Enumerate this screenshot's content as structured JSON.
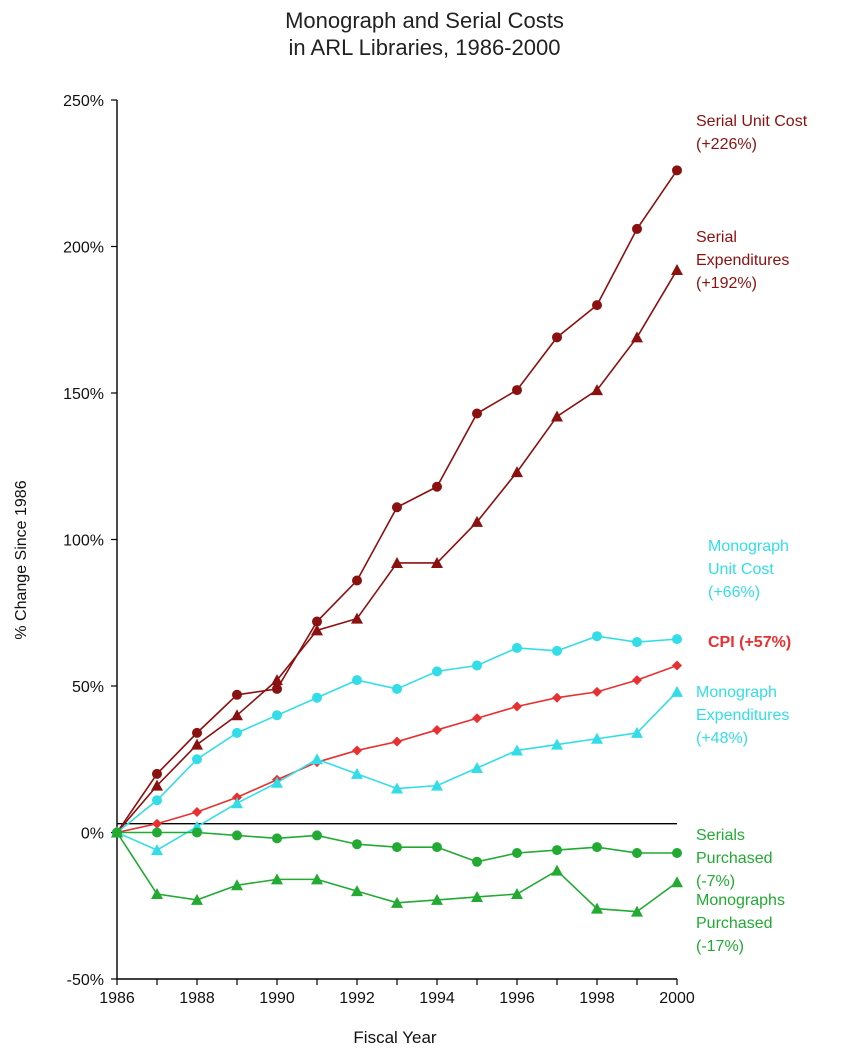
{
  "chart_data": {
    "type": "line",
    "title_lines": [
      "Monograph and Serial Costs",
      "in ARL Libraries, 1986-2000"
    ],
    "xlabel": "Fiscal Year",
    "ylabel": "% Change Since 1986",
    "x": [
      1986,
      1987,
      1988,
      1989,
      1990,
      1991,
      1992,
      1993,
      1994,
      1995,
      1996,
      1997,
      1998,
      1999,
      2000
    ],
    "xlim": [
      1986,
      2000
    ],
    "ylim": [
      -50,
      250
    ],
    "x_ticks": [
      "1986",
      "1988",
      "1990",
      "1992",
      "1994",
      "1996",
      "1998",
      "2000"
    ],
    "y_ticks": [
      "250%",
      "200%",
      "150%",
      "100%",
      "50%",
      "0%",
      "-50%"
    ],
    "reference_line_y": 3,
    "series": [
      {
        "label_lines": [
          "Serial Unit Cost",
          "(+226%)"
        ],
        "color": "#8b1010",
        "marker": "circle",
        "values": [
          0,
          20,
          34,
          47,
          49,
          72,
          86,
          111,
          118,
          143,
          151,
          169,
          180,
          206,
          226
        ]
      },
      {
        "label_lines": [
          "Serial",
          "Expenditures",
          "(+192%)"
        ],
        "color": "#8b1010",
        "marker": "triangle",
        "values": [
          0,
          16,
          30,
          40,
          52,
          69,
          73,
          92,
          92,
          106,
          123,
          142,
          151,
          169,
          192
        ]
      },
      {
        "label_lines": [
          "Monograph",
          "Unit Cost",
          "(+66%)"
        ],
        "color": "#33dde8",
        "marker": "circle",
        "values": [
          0,
          11,
          25,
          34,
          40,
          46,
          52,
          49,
          55,
          57,
          63,
          62,
          67,
          65,
          66
        ]
      },
      {
        "label_lines": [
          "CPI (+57%)"
        ],
        "color": "#e83030",
        "marker": "diamond",
        "bold": true,
        "values": [
          0,
          3,
          7,
          12,
          18,
          24,
          28,
          31,
          35,
          39,
          43,
          46,
          48,
          52,
          57
        ]
      },
      {
        "label_lines": [
          "Monograph",
          "Expenditures",
          "(+48%)"
        ],
        "color": "#33dde8",
        "marker": "triangle",
        "values": [
          0,
          -6,
          2,
          10,
          17,
          25,
          20,
          15,
          16,
          22,
          28,
          30,
          32,
          34,
          48
        ]
      },
      {
        "label_lines": [
          "Serials",
          "Purchased",
          "(-7%)"
        ],
        "color": "#22aa33",
        "marker": "circle",
        "values": [
          0,
          0,
          0,
          -1,
          -2,
          -1,
          -4,
          -5,
          -5,
          -10,
          -7,
          -6,
          -5,
          -7,
          -7
        ]
      },
      {
        "label_lines": [
          "Monographs",
          "Purchased",
          "(-17%)"
        ],
        "color": "#22aa33",
        "marker": "triangle",
        "values": [
          0,
          -21,
          -23,
          -18,
          -16,
          -16,
          -20,
          -24,
          -23,
          -22,
          -21,
          -13,
          -26,
          -27,
          -17
        ]
      }
    ]
  }
}
